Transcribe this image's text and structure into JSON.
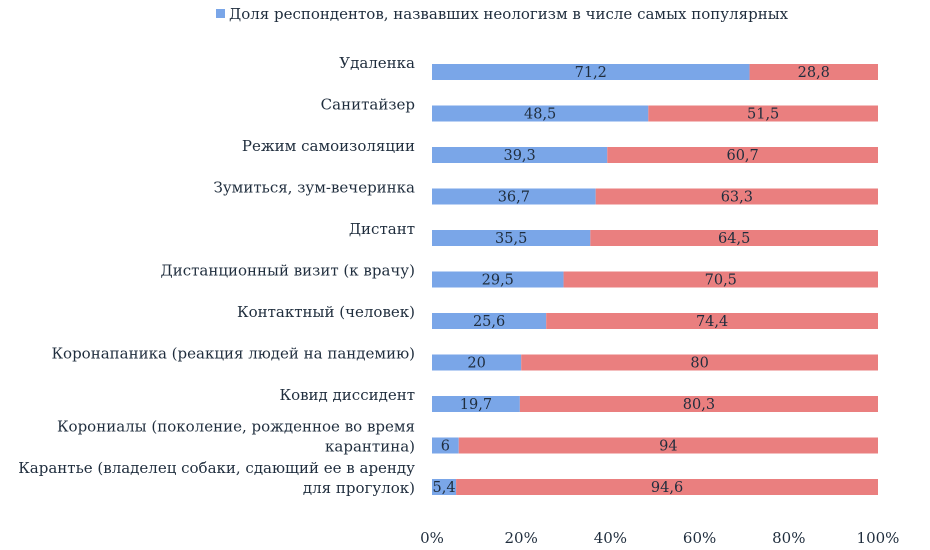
{
  "chart_data": {
    "type": "bar",
    "orientation": "horizontal",
    "stacked": "percent",
    "title": "",
    "xlabel": "",
    "ylabel": "",
    "categories": [
      "Удаленка",
      "Санитайзер",
      "Режим самоизоляции",
      "Зумиться, зум-вечеринка",
      "Дистант",
      "Дистанционный визит (к врачу)",
      "Контактный (человек)",
      "Коронапаника (реакция людей на пандемию)",
      "Ковид диссидент",
      "Корониалы (поколение, рожденное во время карантина)",
      "Карантье (владелец собаки, сдающий ее в аренду для прогулок)"
    ],
    "category_lines": [
      [
        "Удаленка"
      ],
      [
        "Санитайзер"
      ],
      [
        "Режим самоизоляции"
      ],
      [
        "Зумиться, зум-вечеринка"
      ],
      [
        "Дистант"
      ],
      [
        "Дистанционный визит (к врачу)"
      ],
      [
        "Контактный (человек)"
      ],
      [
        "Коронапаника (реакция людей на пандемию)"
      ],
      [
        "Ковид диссидент"
      ],
      [
        "Корониалы (поколение, рожденное во время",
        "карантина)"
      ],
      [
        "Карантье (владелец собаки, сдающий ее в аренду",
        "для прогулок)"
      ]
    ],
    "series": [
      {
        "name": "Доля респондентов, назвавших неологизм в числе самых популярных",
        "color": "#7aa6e8",
        "values": [
          71.2,
          48.5,
          39.3,
          36.7,
          35.5,
          29.5,
          25.6,
          20,
          19.7,
          6,
          5.4
        ],
        "labels": [
          "71,2",
          "48,5",
          "39,3",
          "36,7",
          "35,5",
          "29,5",
          "25,6",
          "20",
          "19,7",
          "6",
          "5,4"
        ]
      },
      {
        "color": "#ea7f7f",
        "values": [
          28.8,
          51.5,
          60.7,
          63.3,
          64.5,
          70.5,
          74.4,
          80,
          80.3,
          94,
          94.6
        ],
        "labels": [
          "28,8",
          "51,5",
          "60,7",
          "63,3",
          "64,5",
          "70,5",
          "74,4",
          "80",
          "80,3",
          "94",
          "94,6"
        ]
      }
    ],
    "xlim": [
      0,
      100
    ],
    "x_ticks": [
      "0%",
      "20%",
      "40%",
      "60%",
      "80%",
      "100%"
    ],
    "legend": {
      "position": "top",
      "entries": [
        "Доля респондентов, назвавших неологизм в числе самых популярных"
      ]
    },
    "grid": false
  }
}
